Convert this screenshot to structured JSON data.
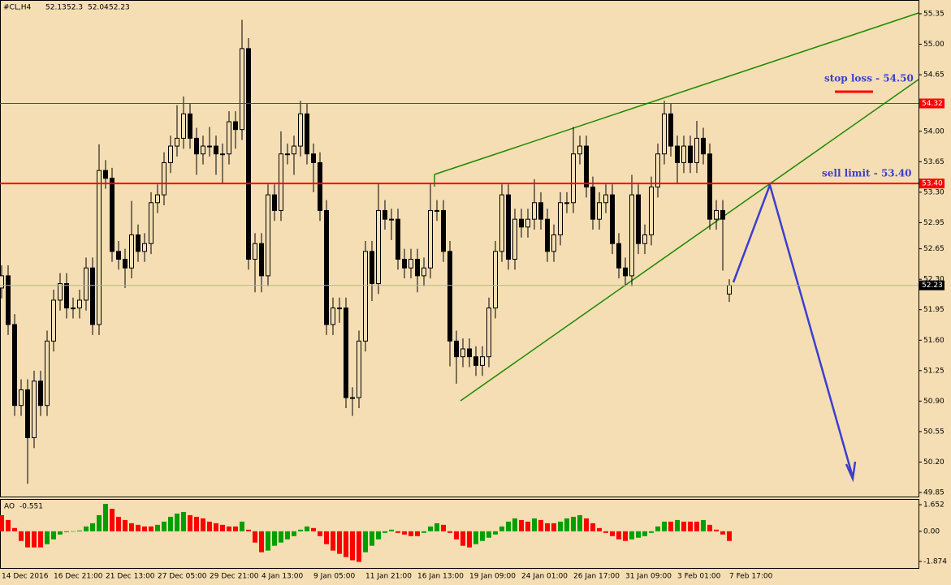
{
  "header": {
    "symbol": "#CL,H4",
    "open": 52.13,
    "high": 52.3,
    "low": 52.04,
    "close": 52.23
  },
  "annotations": {
    "stop_loss": "stop loss - 54.50",
    "sell_limit": "sell limit - 53.40"
  },
  "chart_data": [
    {
      "type": "candlestick",
      "categories": [
        "14 Dec 2016",
        null,
        null,
        null,
        null,
        null,
        null,
        null,
        "16 Dec 21:00",
        null,
        null,
        null,
        null,
        null,
        null,
        null,
        "21 Dec 13:00",
        null,
        null,
        null,
        null,
        null,
        null,
        null,
        "27 Dec 05:00",
        null,
        null,
        null,
        null,
        null,
        null,
        null,
        "29 Dec 21:00",
        null,
        null,
        null,
        null,
        null,
        null,
        null,
        "4 Jan 13:00",
        null,
        null,
        null,
        null,
        null,
        null,
        null,
        "9 Jan 05:00",
        null,
        null,
        null,
        null,
        null,
        null,
        null,
        "11 Jan 21:00",
        null,
        null,
        null,
        null,
        null,
        null,
        null,
        "16 Jan 13:00",
        null,
        null,
        null,
        null,
        null,
        null,
        null,
        "19 Jan 09:00",
        null,
        null,
        null,
        null,
        null,
        null,
        null,
        "24 Jan 01:00",
        null,
        null,
        null,
        null,
        null,
        null,
        null,
        "26 Jan 17:00",
        null,
        null,
        null,
        null,
        null,
        null,
        null,
        "31 Jan 09:00",
        null,
        null,
        null,
        null,
        null,
        null,
        null,
        "3 Feb 01:00",
        null,
        null,
        null,
        null,
        null,
        null,
        null,
        "7 Feb 17:00"
      ],
      "open": [
        52.2,
        52.34,
        51.78,
        50.85,
        51.03,
        50.48,
        51.13,
        50.85,
        51.59,
        52.06,
        52.25,
        51.97,
        51.97,
        52.06,
        52.43,
        51.78,
        53.55,
        53.46,
        52.62,
        52.53,
        52.43,
        52.81,
        52.62,
        52.71,
        53.18,
        53.27,
        53.64,
        53.83,
        53.92,
        54.2,
        53.92,
        53.74,
        53.83,
        53.83,
        53.74,
        53.74,
        54.11,
        54.02,
        54.95,
        52.53,
        52.71,
        52.34,
        53.27,
        53.09,
        53.74,
        53.74,
        53.83,
        54.2,
        53.74,
        53.64,
        53.09,
        51.78,
        51.97,
        51.97,
        50.94,
        50.94,
        51.59,
        52.62,
        52.25,
        53.09,
        52.99,
        52.99,
        52.53,
        52.43,
        52.53,
        52.34,
        52.43,
        53.09,
        53.09,
        52.62,
        51.59,
        51.41,
        51.5,
        51.41,
        51.31,
        51.41,
        51.97,
        52.62,
        53.27,
        52.53,
        52.99,
        52.9,
        52.99,
        53.18,
        52.99,
        52.62,
        52.81,
        53.18,
        53.18,
        53.74,
        53.83,
        53.36,
        52.99,
        53.18,
        53.27,
        52.71,
        52.43,
        52.34,
        53.27,
        52.71,
        52.81,
        53.36,
        53.74,
        54.2,
        53.83,
        53.64,
        53.83,
        53.64,
        53.92,
        53.74,
        52.99,
        53.09,
        52.13
      ],
      "high": [
        52.46,
        52.46,
        51.9,
        51.15,
        51.15,
        51.25,
        51.25,
        51.71,
        52.18,
        52.37,
        52.37,
        52.09,
        52.18,
        52.55,
        52.55,
        53.85,
        53.67,
        53.58,
        52.74,
        52.65,
        53.2,
        52.93,
        52.83,
        53.3,
        53.39,
        53.76,
        53.95,
        54.3,
        54.4,
        54.32,
        54.04,
        53.95,
        54.05,
        53.95,
        53.86,
        54.23,
        54.23,
        55.28,
        55.07,
        52.83,
        52.83,
        53.39,
        53.39,
        54.0,
        53.86,
        53.95,
        54.35,
        54.32,
        53.86,
        53.76,
        53.21,
        52.09,
        52.09,
        52.09,
        51.06,
        51.71,
        52.74,
        52.74,
        53.4,
        53.21,
        53.11,
        53.11,
        52.65,
        52.65,
        52.65,
        52.55,
        53.4,
        53.21,
        53.21,
        52.74,
        51.71,
        51.62,
        51.62,
        51.53,
        51.53,
        52.09,
        52.74,
        53.39,
        53.39,
        53.11,
        53.11,
        53.11,
        53.45,
        53.3,
        53.11,
        52.93,
        53.3,
        53.3,
        54.05,
        53.95,
        53.95,
        53.48,
        53.3,
        53.39,
        53.39,
        52.83,
        52.55,
        53.5,
        53.39,
        52.93,
        53.48,
        53.86,
        54.35,
        54.32,
        53.95,
        53.95,
        53.95,
        54.12,
        54.04,
        53.86,
        53.21,
        53.21,
        52.3
      ],
      "low": [
        52.08,
        51.66,
        50.73,
        50.73,
        49.95,
        50.36,
        50.73,
        50.73,
        51.47,
        51.94,
        51.85,
        51.85,
        51.85,
        51.94,
        51.66,
        51.66,
        53.34,
        52.5,
        52.41,
        52.2,
        52.31,
        52.5,
        52.5,
        52.59,
        53.06,
        53.15,
        53.52,
        53.71,
        53.8,
        53.8,
        53.5,
        53.62,
        53.71,
        53.5,
        53.4,
        53.62,
        53.8,
        53.9,
        52.41,
        52.15,
        52.15,
        52.22,
        52.97,
        52.97,
        53.62,
        53.5,
        53.71,
        53.62,
        53.3,
        52.97,
        51.66,
        51.66,
        51.8,
        50.82,
        50.73,
        50.82,
        51.47,
        52.05,
        52.13,
        52.87,
        52.75,
        52.41,
        52.31,
        52.31,
        52.15,
        52.22,
        52.31,
        52.97,
        52.5,
        51.3,
        51.1,
        51.29,
        51.29,
        51.19,
        51.19,
        51.29,
        51.85,
        52.5,
        52.41,
        52.41,
        52.78,
        52.78,
        52.87,
        52.87,
        52.5,
        52.5,
        52.69,
        53.06,
        53.06,
        53.62,
        53.24,
        52.87,
        52.87,
        53.06,
        52.59,
        52.31,
        52.22,
        52.22,
        52.59,
        52.59,
        52.69,
        53.24,
        53.62,
        53.71,
        53.4,
        53.52,
        53.52,
        53.52,
        53.62,
        52.87,
        52.87,
        52.4,
        52.04
      ],
      "close": [
        52.34,
        51.78,
        50.85,
        51.03,
        50.48,
        51.13,
        50.85,
        51.59,
        52.06,
        52.25,
        51.97,
        51.97,
        52.06,
        52.43,
        51.78,
        53.55,
        53.46,
        52.62,
        52.53,
        52.43,
        52.81,
        52.62,
        52.71,
        53.18,
        53.27,
        53.64,
        53.83,
        53.92,
        54.2,
        53.92,
        53.74,
        53.83,
        53.83,
        53.74,
        53.74,
        54.11,
        54.02,
        54.95,
        52.53,
        52.71,
        52.34,
        53.27,
        53.09,
        53.74,
        53.74,
        53.83,
        54.2,
        53.74,
        53.64,
        53.09,
        51.78,
        51.97,
        51.97,
        50.94,
        50.94,
        51.59,
        52.62,
        52.25,
        53.09,
        52.99,
        52.99,
        52.53,
        52.43,
        52.53,
        52.34,
        52.43,
        53.09,
        53.09,
        52.62,
        51.59,
        51.41,
        51.5,
        51.41,
        51.31,
        51.41,
        51.97,
        52.62,
        53.27,
        52.53,
        52.99,
        52.9,
        52.99,
        53.18,
        52.99,
        52.62,
        52.81,
        53.18,
        53.18,
        53.74,
        53.83,
        53.36,
        52.99,
        53.18,
        53.27,
        52.71,
        52.43,
        52.34,
        53.27,
        52.71,
        52.81,
        53.36,
        53.74,
        54.2,
        53.83,
        53.64,
        53.83,
        53.64,
        53.92,
        53.74,
        52.99,
        53.09,
        52.99,
        52.23
      ],
      "color": "#000000",
      "ylim": [
        49.85,
        55.35
      ],
      "yticks": [
        55.35,
        {
          "value": 55,
          "label": "55.00"
        },
        54.65,
        {
          "value": 54,
          "label": "54.00"
        },
        53.65,
        {
          "value": 53.3,
          "label": "53.30"
        },
        52.95,
        52.65,
        {
          "value": 52.3,
          "label": "52.30"
        },
        51.95,
        {
          "value": 51.6,
          "label": "51.60"
        },
        51.25,
        {
          "value": 50.9,
          "label": "50.90"
        },
        50.55,
        {
          "value": 50.2,
          "label": "50.20"
        },
        49.85
      ],
      "levels": [
        54.32,
        {
          "value": 53.4,
          "label": "53.40"
        }
      ],
      "level_color": "#ff0000",
      "current": 52.23
    },
    {
      "type": "bar",
      "title": "AO",
      "last": -0.551,
      "values": [
        1.0,
        0.7,
        0.2,
        -0.6,
        -1.0,
        -1.0,
        -1.0,
        -0.8,
        -0.5,
        -0.2,
        -0.05,
        0.0,
        0.05,
        0.3,
        0.5,
        1.0,
        1.7,
        1.4,
        0.9,
        0.7,
        0.5,
        0.4,
        0.3,
        0.3,
        0.4,
        0.6,
        0.9,
        1.1,
        1.2,
        1.0,
        0.9,
        0.8,
        0.6,
        0.5,
        0.4,
        0.3,
        0.3,
        0.6,
        0.1,
        -0.7,
        -1.3,
        -1.2,
        -0.9,
        -0.7,
        -0.5,
        -0.3,
        0.1,
        0.3,
        0.2,
        -0.3,
        -0.8,
        -1.2,
        -1.4,
        -1.6,
        -1.8,
        -1.9,
        -1.3,
        -0.9,
        -0.5,
        -0.1,
        0.1,
        -0.1,
        -0.2,
        -0.3,
        -0.3,
        -0.1,
        0.3,
        0.5,
        0.4,
        -0.1,
        -0.5,
        -0.9,
        -1.0,
        -0.8,
        -0.6,
        -0.4,
        -0.2,
        0.3,
        0.6,
        0.8,
        0.7,
        0.6,
        0.8,
        0.7,
        0.5,
        0.5,
        0.6,
        0.8,
        0.9,
        1.0,
        0.8,
        0.5,
        0.2,
        -0.1,
        -0.3,
        -0.5,
        -0.6,
        -0.5,
        -0.4,
        -0.3,
        -0.1,
        0.3,
        0.6,
        0.6,
        0.7,
        0.6,
        0.6,
        0.6,
        0.7,
        0.4,
        0.1,
        -0.2,
        -0.6
      ],
      "up_color": "#00a000",
      "down_color": "#ff0000",
      "ylim": [
        -1.874,
        1.652
      ],
      "yticks": [
        1.652,
        {
          "value": 0,
          "label": "0.00"
        },
        -1.874
      ]
    }
  ]
}
